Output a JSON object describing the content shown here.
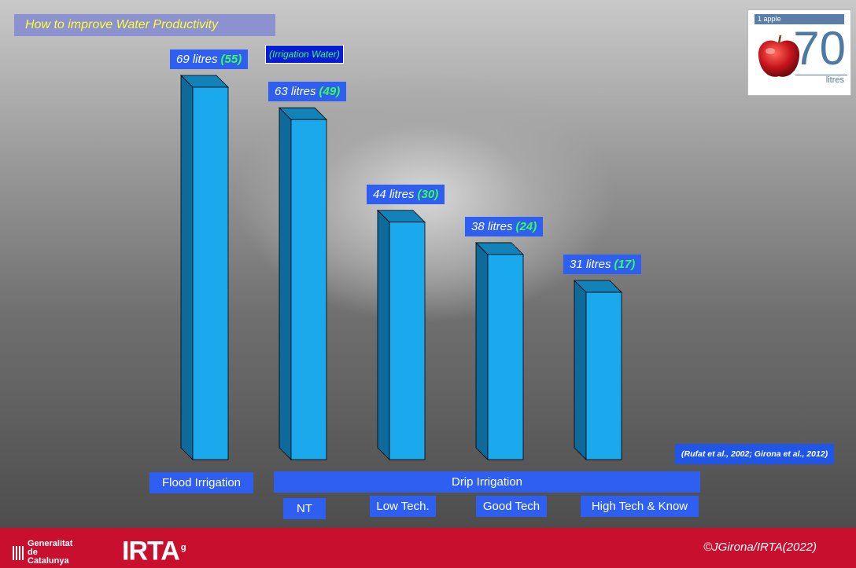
{
  "title": "How to improve Water Productivity",
  "legend_note": "(Irrigation Water)",
  "reference": "(Rufat et al., 2002; Girona et al., 2012)",
  "apple_badge": {
    "tag": "1 apple",
    "number": "70",
    "unit": "litres"
  },
  "footer": {
    "org1": "Generalitat de Catalunya",
    "org2": "IRTA",
    "copyright": "©JGirona/IRTA(2022)"
  },
  "colors": {
    "bar": "#1ba9ee",
    "bar_top": "#1282b8",
    "bar_side": "#0d6a9a",
    "label_bg": "#2f5ff0",
    "irrigation_value": "#35ff55",
    "footer": "#c8102e"
  },
  "chart_data": {
    "type": "bar",
    "title": "How to improve Water Productivity",
    "categories": [
      "Flood Irrigation",
      "NT",
      "Low Tech.",
      "Good Tech",
      "High Tech & Know"
    ],
    "group_labels": [
      "Drip Irrigation"
    ],
    "series": [
      {
        "name": "litres",
        "values": [
          69,
          63,
          44,
          38,
          31
        ]
      },
      {
        "name": "(Irrigation Water)",
        "values": [
          55,
          49,
          30,
          24,
          17
        ]
      }
    ],
    "value_labels": [
      {
        "total": "69 litres",
        "irrigation": "(55)"
      },
      {
        "total": "63 litres",
        "irrigation": "(49)"
      },
      {
        "total": "44 litres",
        "irrigation": "(30)"
      },
      {
        "total": "38 litres",
        "irrigation": "(24)"
      },
      {
        "total": "31 litres",
        "irrigation": "(17)"
      }
    ],
    "ylim": [
      0,
      69
    ],
    "grid": false,
    "legend": "top"
  }
}
